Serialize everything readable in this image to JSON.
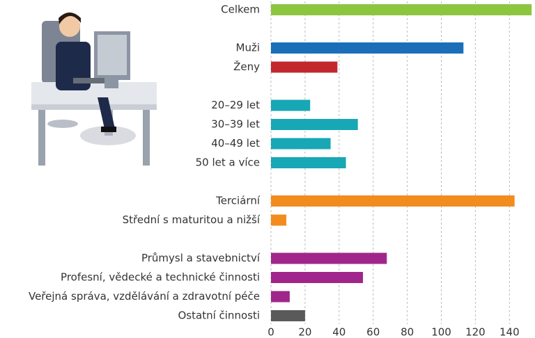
{
  "chart_data": {
    "type": "barh",
    "categories": [
      "Celkem",
      null,
      "Muži",
      "Ženy",
      null,
      "20–29 let",
      "30–39 let",
      "40–49 let",
      "50 let a více",
      null,
      "Terciární",
      "Střední s maturitou a nižší",
      null,
      "Průmysl a stavebnictví",
      "Profesní, vědecké a technické činnosti",
      "Veřejná správa, vzdělávání a zdravotní péče",
      "Ostatní činnosti"
    ],
    "values": [
      153,
      null,
      113,
      39,
      null,
      23,
      51,
      35,
      44,
      null,
      143,
      9,
      null,
      68,
      54,
      11,
      20
    ],
    "colors": [
      "#8cc63f",
      null,
      "#1b6fb9",
      "#c1272d",
      null,
      "#18a7b5",
      "#18a7b5",
      "#18a7b5",
      "#18a7b5",
      null,
      "#f28c1e",
      "#f28c1e",
      null,
      "#a0268b",
      "#a0268b",
      "#a0268b",
      "#5a5a5a"
    ],
    "xlim": [
      0,
      155
    ],
    "xticks": [
      0,
      20,
      40,
      60,
      80,
      100,
      120,
      140
    ],
    "grid": true
  }
}
